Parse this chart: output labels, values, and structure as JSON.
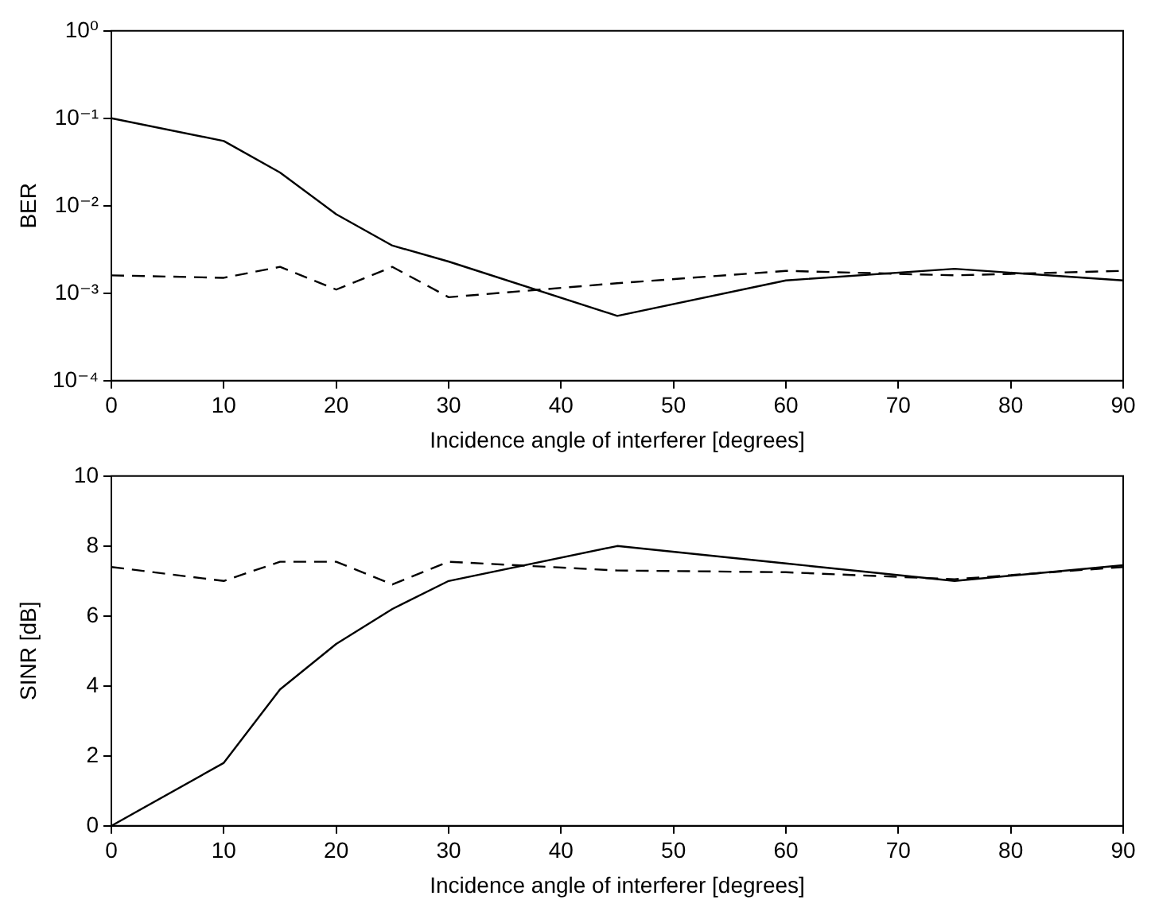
{
  "chart_data": [
    {
      "type": "line",
      "xlabel": "Incidence angle of interferer [degrees]",
      "ylabel": "BER",
      "log": "y",
      "grid": false,
      "legend": false,
      "marker": "none",
      "xlim": [
        0,
        90
      ],
      "xticks": [
        0,
        10,
        20,
        30,
        40,
        50,
        60,
        70,
        80,
        90
      ],
      "ylim": [
        0.0001,
        1
      ],
      "yticks": [
        {
          "value": 0.0001,
          "label": "10⁻⁴"
        },
        {
          "value": 0.001,
          "label": "10⁻³"
        },
        {
          "value": 0.01,
          "label": "10⁻²"
        },
        {
          "value": 0.1,
          "label": "10⁻¹"
        },
        {
          "value": 1,
          "label": "10⁰"
        }
      ],
      "x": [
        0,
        10,
        15,
        20,
        25,
        30,
        45,
        60,
        75,
        90
      ],
      "series": [
        {
          "color": "#000000",
          "line_style": "solid",
          "values": [
            0.1,
            0.055,
            0.024,
            0.008,
            0.0035,
            0.0023,
            0.00055,
            0.0014,
            0.0019,
            0.0014
          ]
        },
        {
          "color": "#000000",
          "line_style": "dashed",
          "values": [
            0.0016,
            0.0015,
            0.002,
            0.0011,
            0.002,
            0.0009,
            0.0013,
            0.0018,
            0.0016,
            0.0018
          ]
        }
      ]
    },
    {
      "type": "line",
      "xlabel": "Incidence angle of interferer [degrees]",
      "ylabel": "SINR [dB]",
      "grid": false,
      "legend": false,
      "marker": "none",
      "xlim": [
        0,
        90
      ],
      "xticks": [
        0,
        10,
        20,
        30,
        40,
        50,
        60,
        70,
        80,
        90
      ],
      "ylim": [
        0,
        10
      ],
      "yticks": [
        0,
        2,
        4,
        6,
        8,
        10
      ],
      "x": [
        0,
        10,
        15,
        20,
        25,
        30,
        45,
        60,
        75,
        90
      ],
      "series": [
        {
          "color": "#000000",
          "line_style": "solid",
          "values": [
            0,
            1.8,
            3.9,
            5.2,
            6.2,
            7.0,
            8.0,
            7.5,
            7.0,
            7.45
          ]
        },
        {
          "color": "#000000",
          "line_style": "dashed",
          "values": [
            7.4,
            7.0,
            7.55,
            7.55,
            6.9,
            7.55,
            7.3,
            7.25,
            7.05,
            7.4
          ]
        }
      ]
    }
  ]
}
